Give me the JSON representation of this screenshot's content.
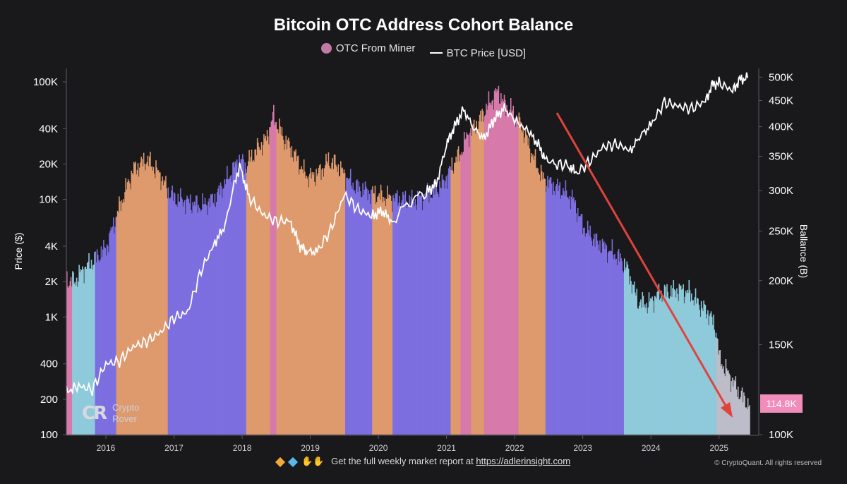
{
  "title": "Bitcoin OTC Address Cohort Balance",
  "legend": {
    "series_a": "OTC From Miner",
    "series_b": "BTC Price [USD]"
  },
  "footer": {
    "text": "Get the full weekly market report at",
    "link": "https://adlerinsight.com",
    "copyright": "© CryptoQuant. All rights reserved"
  },
  "logo": {
    "line1": "Crypto",
    "line2": "Rover"
  },
  "badge": "114.8K",
  "colors": {
    "background": "#19191c",
    "miner_pink": "#d77aab",
    "orange": "#de9a6d",
    "purple": "#7d6fe0",
    "cyan": "#8fcadb",
    "grey": "#bdbdca",
    "price_line": "#ffffff",
    "trend_arrow": "#e0433c",
    "badge": "#f08dbb"
  },
  "icons": [
    "diamond-icon",
    "gem-icon",
    "raised-hands-icon"
  ],
  "chart_data": {
    "type": "bar",
    "xlabel": "",
    "ylabel_left": "Price ($)",
    "ylabel_right": "Ballance (B)",
    "x_ticks": [
      "2016",
      "2017",
      "2018",
      "2019",
      "2020",
      "2021",
      "2022",
      "2023",
      "2024",
      "2025"
    ],
    "left_ticks": [
      {
        "v": 100,
        "label": "100"
      },
      {
        "v": 200,
        "label": "200"
      },
      {
        "v": 400,
        "label": "400"
      },
      {
        "v": 1000,
        "label": "1K"
      },
      {
        "v": 2000,
        "label": "2K"
      },
      {
        "v": 4000,
        "label": "4K"
      },
      {
        "v": 10000,
        "label": "10K"
      },
      {
        "v": 20000,
        "label": "20K"
      },
      {
        "v": 40000,
        "label": "40K"
      },
      {
        "v": 100000,
        "label": "100K"
      }
    ],
    "right_ticks": [
      {
        "v": 100000,
        "label": "100K"
      },
      {
        "v": 150000,
        "label": "150K"
      },
      {
        "v": 200000,
        "label": "200K"
      },
      {
        "v": 250000,
        "label": "250K"
      },
      {
        "v": 300000,
        "label": "300K"
      },
      {
        "v": 350000,
        "label": "350K"
      },
      {
        "v": 400000,
        "label": "400K"
      },
      {
        "v": 450000,
        "label": "450K"
      },
      {
        "v": 500000,
        "label": "500K"
      }
    ],
    "x_range": [
      2015.42,
      2025.5
    ],
    "left_range": [
      100,
      130000
    ],
    "right_range": [
      100000,
      520000
    ],
    "log_scale": true,
    "grid": false,
    "legend_position": "top-center",
    "balance_series": {
      "name": "OTC From Miner",
      "x": [
        2015.45,
        2015.55,
        2015.65,
        2015.8,
        2016.0,
        2016.2,
        2016.4,
        2016.6,
        2016.8,
        2016.9,
        2017.0,
        2017.2,
        2017.4,
        2017.6,
        2017.8,
        2017.95,
        2018.05,
        2018.2,
        2018.35,
        2018.45,
        2018.6,
        2018.75,
        2018.9,
        2019.0,
        2019.15,
        2019.25,
        2019.35,
        2019.5,
        2019.65,
        2019.8,
        2019.95,
        2020.05,
        2020.2,
        2020.35,
        2020.5,
        2020.65,
        2020.8,
        2020.95,
        2021.1,
        2021.2,
        2021.3,
        2021.45,
        2021.6,
        2021.75,
        2021.85,
        2021.95,
        2022.1,
        2022.25,
        2022.4,
        2022.55,
        2022.7,
        2022.85,
        2023.0,
        2023.2,
        2023.4,
        2023.55,
        2023.65,
        2023.8,
        2023.95,
        2024.1,
        2024.25,
        2024.4,
        2024.55,
        2024.7,
        2024.85,
        2024.95,
        2025.0,
        2025.15,
        2025.3,
        2025.42
      ],
      "y": [
        200000,
        200000,
        210000,
        218000,
        232000,
        280000,
        330000,
        345000,
        320000,
        300000,
        290000,
        285000,
        280000,
        290000,
        320000,
        345000,
        335000,
        360000,
        378000,
        420000,
        380000,
        355000,
        325000,
        318000,
        328000,
        342000,
        340000,
        322000,
        305000,
        300000,
        295000,
        292000,
        290000,
        288000,
        286000,
        292000,
        298000,
        310000,
        340000,
        355000,
        385000,
        405000,
        440000,
        470000,
        440000,
        430000,
        400000,
        352000,
        318000,
        307000,
        300000,
        288000,
        255000,
        238000,
        228000,
        220000,
        210000,
        182000,
        180000,
        188000,
        190000,
        192000,
        190000,
        180000,
        172000,
        160000,
        140000,
        130000,
        120000,
        114800
      ],
      "segments": [
        {
          "from": 2015.42,
          "to": 2015.5,
          "category": "pink"
        },
        {
          "from": 2015.5,
          "to": 2015.83,
          "category": "cyan"
        },
        {
          "from": 2015.83,
          "to": 2016.15,
          "category": "purple"
        },
        {
          "from": 2016.15,
          "to": 2016.9,
          "category": "orange"
        },
        {
          "from": 2016.9,
          "to": 2018.05,
          "category": "purple"
        },
        {
          "from": 2018.05,
          "to": 2018.4,
          "category": "orange"
        },
        {
          "from": 2018.4,
          "to": 2018.5,
          "category": "pink"
        },
        {
          "from": 2018.5,
          "to": 2019.5,
          "category": "orange"
        },
        {
          "from": 2019.5,
          "to": 2019.9,
          "category": "purple"
        },
        {
          "from": 2019.9,
          "to": 2020.2,
          "category": "orange"
        },
        {
          "from": 2020.2,
          "to": 2021.05,
          "category": "purple"
        },
        {
          "from": 2021.05,
          "to": 2021.2,
          "category": "orange"
        },
        {
          "from": 2021.2,
          "to": 2021.35,
          "category": "pink"
        },
        {
          "from": 2021.35,
          "to": 2021.55,
          "category": "orange"
        },
        {
          "from": 2021.55,
          "to": 2022.05,
          "category": "pink"
        },
        {
          "from": 2022.05,
          "to": 2022.45,
          "category": "orange"
        },
        {
          "from": 2022.45,
          "to": 2023.6,
          "category": "purple"
        },
        {
          "from": 2023.6,
          "to": 2024.95,
          "category": "cyan"
        },
        {
          "from": 2024.95,
          "to": 2025.45,
          "category": "grey"
        }
      ]
    },
    "price_series": {
      "name": "BTC Price [USD]",
      "x": [
        2015.42,
        2015.6,
        2015.8,
        2016.0,
        2016.2,
        2016.4,
        2016.6,
        2016.8,
        2017.0,
        2017.2,
        2017.4,
        2017.6,
        2017.75,
        2017.9,
        2017.97,
        2018.1,
        2018.3,
        2018.5,
        2018.7,
        2018.85,
        2018.95,
        2019.1,
        2019.3,
        2019.5,
        2019.7,
        2019.9,
        2020.05,
        2020.2,
        2020.45,
        2020.7,
        2020.85,
        2021.0,
        2021.1,
        2021.25,
        2021.4,
        2021.55,
        2021.7,
        2021.85,
        2022.0,
        2022.2,
        2022.35,
        2022.45,
        2022.6,
        2022.8,
        2022.9,
        2023.1,
        2023.3,
        2023.5,
        2023.7,
        2023.85,
        2024.0,
        2024.2,
        2024.4,
        2024.6,
        2024.8,
        2024.9,
        2025.0,
        2025.2,
        2025.3,
        2025.42
      ],
      "y": [
        230,
        260,
        240,
        400,
        420,
        560,
        620,
        740,
        980,
        1100,
        2500,
        4300,
        6000,
        15000,
        19000,
        10500,
        7500,
        6500,
        6600,
        4000,
        3600,
        3600,
        5500,
        11000,
        8200,
        7200,
        8000,
        6500,
        9500,
        11500,
        13500,
        29000,
        40000,
        58000,
        40000,
        33000,
        48000,
        60000,
        47000,
        38000,
        29000,
        22000,
        20000,
        19500,
        16500,
        21000,
        28000,
        29500,
        26000,
        35000,
        43000,
        67000,
        62000,
        59000,
        69000,
        95000,
        98000,
        84000,
        104000,
        108000
      ]
    }
  }
}
